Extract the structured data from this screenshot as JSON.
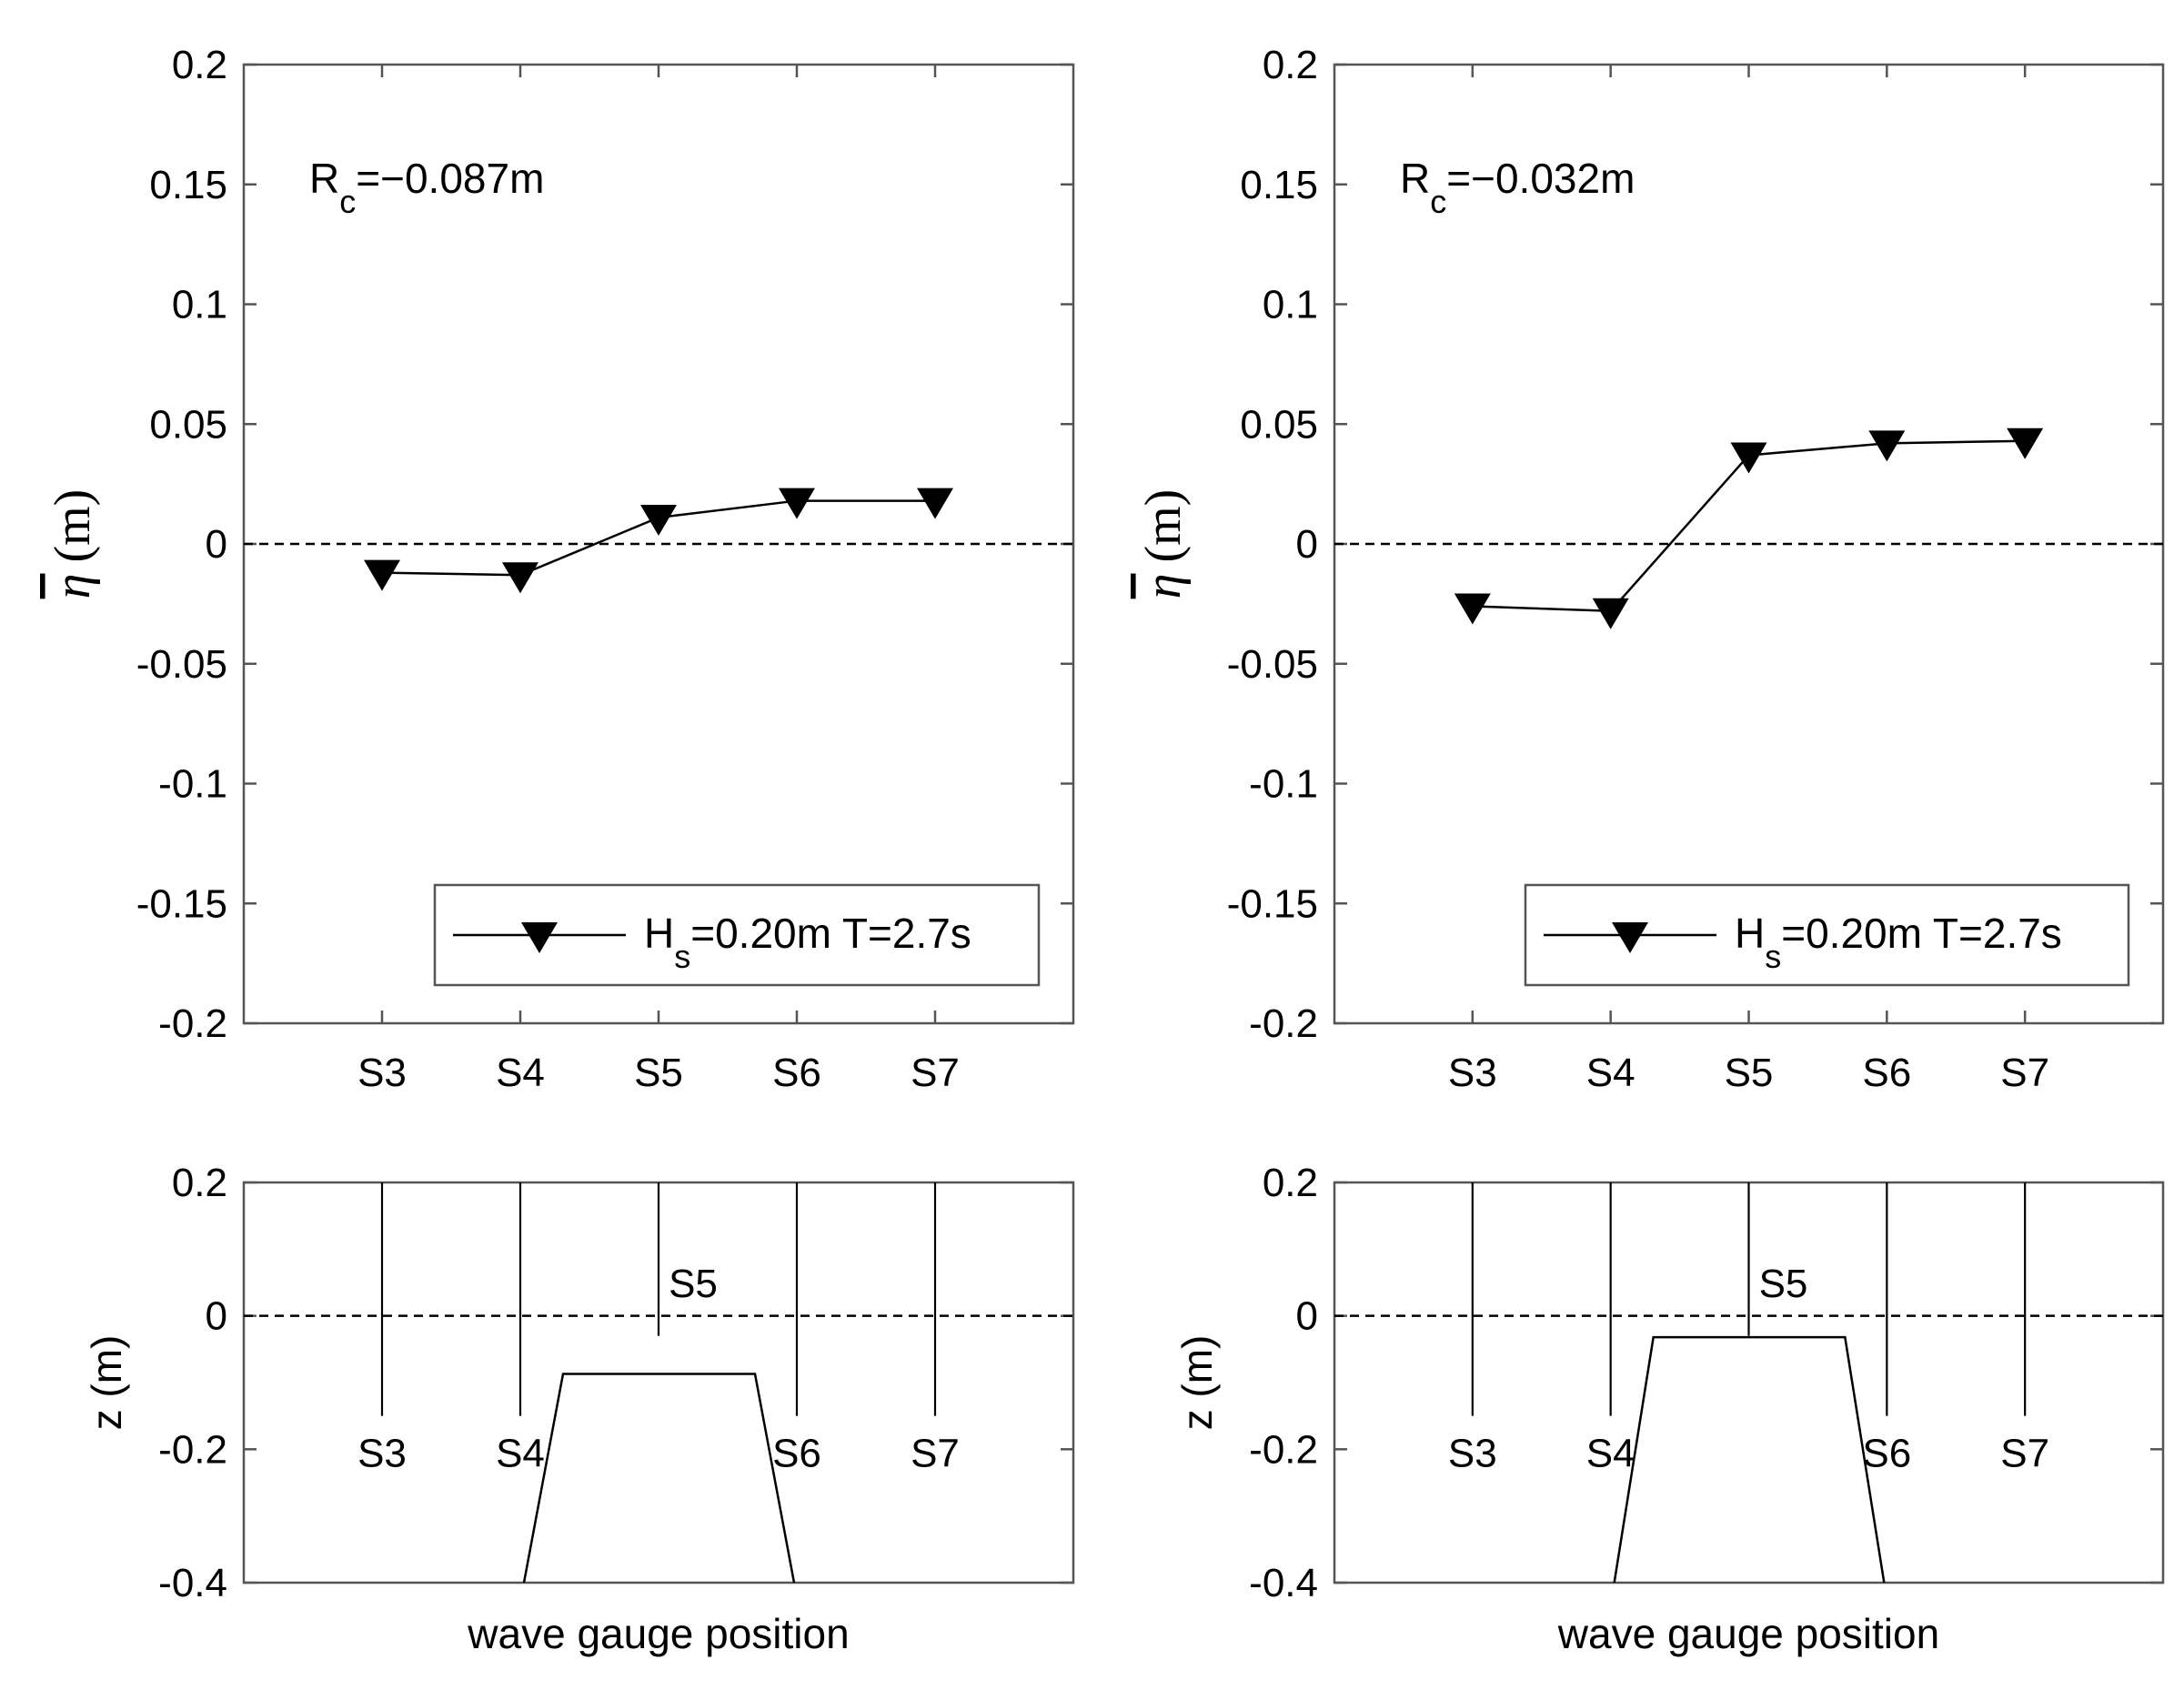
{
  "chart_data": [
    {
      "panel": "top-left",
      "type": "line",
      "categories": [
        "S3",
        "S4",
        "S5",
        "S6",
        "S7"
      ],
      "series": [
        {
          "name": "H_s=0.20m T=2.7s",
          "values": [
            -0.012,
            -0.013,
            0.011,
            0.018,
            0.018
          ],
          "marker": "down-triangle"
        }
      ],
      "ylabel": {
        "symbol": "η",
        "unit": "(m)"
      },
      "ylim": [
        -0.2,
        0.2
      ],
      "yticks": [
        "0.2",
        "0.15",
        "0.1",
        "0.05",
        "0",
        "-0.05",
        "-0.1",
        "-0.15",
        "-0.2"
      ],
      "ytick_values": [
        0.2,
        0.15,
        0.1,
        0.05,
        0,
        -0.05,
        -0.1,
        -0.15,
        -0.2
      ],
      "reference_line": 0,
      "annotation": {
        "main": "R",
        "sub": "c",
        "rest": "=−0.087m"
      },
      "legend": {
        "main": "H",
        "sub": "s",
        "rest": "=0.20m T=2.7s",
        "placement": "bottom-right"
      }
    },
    {
      "panel": "top-right",
      "type": "line",
      "categories": [
        "S3",
        "S4",
        "S5",
        "S6",
        "S7"
      ],
      "series": [
        {
          "name": "H_s=0.20m T=2.7s",
          "values": [
            -0.026,
            -0.028,
            0.037,
            0.042,
            0.043
          ],
          "marker": "down-triangle"
        }
      ],
      "ylabel": {
        "symbol": "η",
        "unit": "(m)"
      },
      "ylim": [
        -0.2,
        0.2
      ],
      "yticks": [
        "0.2",
        "0.15",
        "0.1",
        "0.05",
        "0",
        "-0.05",
        "-0.1",
        "-0.15",
        "-0.2"
      ],
      "ytick_values": [
        0.2,
        0.15,
        0.1,
        0.05,
        0,
        -0.05,
        -0.1,
        -0.15,
        -0.2
      ],
      "reference_line": 0,
      "annotation": {
        "main": "R",
        "sub": "c",
        "rest": "=−0.032m"
      },
      "legend": {
        "main": "H",
        "sub": "s",
        "rest": "=0.20m T=2.7s",
        "placement": "bottom-right"
      }
    },
    {
      "panel": "bottom-left",
      "type": "diagram",
      "xlabel": "wave gauge position",
      "ylabel": "z (m)",
      "ylim": [
        -0.4,
        0.2
      ],
      "yticks": [
        "0.2",
        "0",
        "-0.2",
        "-0.4"
      ],
      "ytick_values": [
        0.2,
        0,
        -0.2,
        -0.4
      ],
      "gauges": [
        "S3",
        "S4",
        "S5",
        "S6",
        "S7"
      ],
      "gauge_bottom_z": [
        -0.15,
        -0.15,
        -0.03,
        -0.15,
        -0.15
      ],
      "still_water_level": 0,
      "crest_z": -0.087,
      "structure_base_z": -0.4
    },
    {
      "panel": "bottom-right",
      "type": "diagram",
      "xlabel": "wave gauge position",
      "ylabel": "z (m)",
      "ylim": [
        -0.4,
        0.2
      ],
      "yticks": [
        "0.2",
        "0",
        "-0.2",
        "-0.4"
      ],
      "ytick_values": [
        0.2,
        0,
        -0.2,
        -0.4
      ],
      "gauges": [
        "S3",
        "S4",
        "S5",
        "S6",
        "S7"
      ],
      "gauge_bottom_z": [
        -0.15,
        -0.15,
        -0.03,
        -0.15,
        -0.15
      ],
      "still_water_level": 0,
      "crest_z": -0.032,
      "structure_base_z": -0.4
    }
  ]
}
